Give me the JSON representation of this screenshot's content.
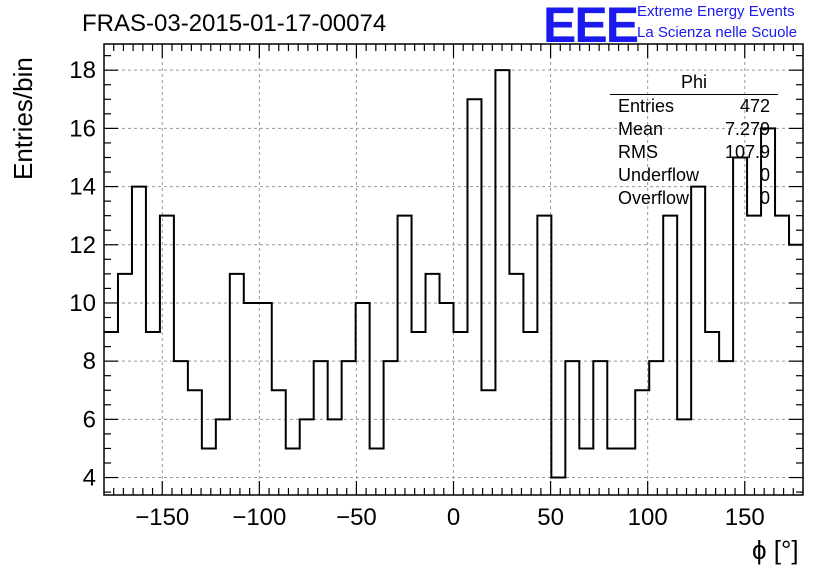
{
  "title": "FRAS-03-2015-01-17-00074",
  "brand": {
    "logo": "EEE",
    "line1": "Extreme Energy Events",
    "line2": "La Scienza nelle Scuole",
    "color": "#1a1aee"
  },
  "stats": {
    "title": "Phi",
    "rows": [
      {
        "label": "Entries",
        "value": "472"
      },
      {
        "label": "Mean",
        "value": "7.279"
      },
      {
        "label": "RMS",
        "value": "107.9"
      },
      {
        "label": "Underflow",
        "value": "0"
      },
      {
        "label": "Overflow",
        "value": "0"
      }
    ]
  },
  "chart_data": {
    "type": "bar",
    "title": "FRAS-03-2015-01-17-00074",
    "xlabel": "ϕ [°]",
    "ylabel": "Entries/bin",
    "xlim": [
      -180,
      180
    ],
    "ylim": [
      3.4,
      18.9
    ],
    "bin_width": 7.2,
    "x_ticks": [
      -150,
      -100,
      -50,
      0,
      50,
      100,
      150
    ],
    "x_tick_labels": [
      "−150",
      "−100",
      "−50",
      "0",
      "50",
      "100",
      "150"
    ],
    "y_ticks": [
      4,
      6,
      8,
      10,
      12,
      14,
      16,
      18
    ],
    "y_tick_labels": [
      "4",
      "6",
      "8",
      "10",
      "12",
      "14",
      "16",
      "18"
    ],
    "grid": true,
    "values": [
      9,
      11,
      14,
      9,
      13,
      8,
      7,
      5,
      6,
      11,
      10,
      10,
      7,
      5,
      6,
      8,
      6,
      8,
      10,
      5,
      8,
      13,
      9,
      11,
      10,
      9,
      17,
      7,
      18,
      11,
      9,
      13,
      4,
      8,
      5,
      8,
      5,
      5,
      7,
      8,
      13,
      6,
      14,
      9,
      8,
      15,
      13,
      16,
      13,
      12
    ]
  }
}
